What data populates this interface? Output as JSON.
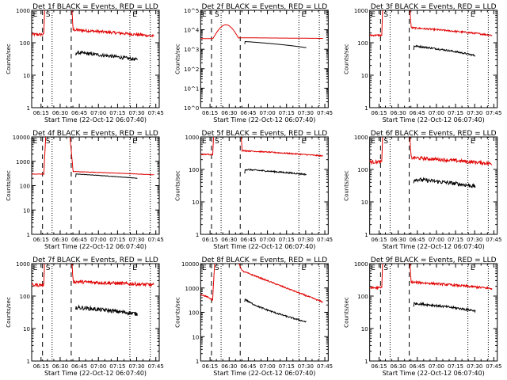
{
  "colors": {
    "events": "#000000",
    "lld": "#e00000",
    "axis": "#000000"
  },
  "chart_data": {
    "type": "line",
    "common": {
      "xlabel": "Start Time (22-Oct-12 06:07:40)",
      "ylabel": "Counts/sec",
      "x_tick_labels": [
        "06:15",
        "06:30",
        "06:45",
        "07:00",
        "07:15",
        "07:30",
        "07:45"
      ],
      "x_ticks_min": [
        7.33,
        22.33,
        37.33,
        52.33,
        67.33,
        82.33,
        97.33
      ],
      "xlim_min": [
        0,
        100
      ],
      "yscale": "log",
      "dashed_vlines_min": [
        8.5,
        31
      ],
      "dotted_vlines_min": [
        16,
        77,
        93
      ],
      "markers": [
        {
          "label": "E",
          "x_min": 1
        },
        {
          "label": "S",
          "x_min": 11
        },
        {
          "label": "E",
          "x_min": 79
        }
      ]
    },
    "panels": [
      {
        "title": "Det 1f BLACK = Events, RED = LLD",
        "ylim": [
          1,
          1000
        ],
        "y_tick_labels": [
          "1",
          "10",
          "100",
          "1000"
        ],
        "lld": {
          "pre": 180,
          "post_start": 250,
          "post_end": 160,
          "noise": 0.1
        },
        "events": {
          "start": 50,
          "end": 30,
          "noise": 0.12
        }
      },
      {
        "title": "Det 2f BLACK = Events, RED = LLD",
        "ylim": [
          1,
          100000
        ],
        "y_tick_labels": [
          "10^0",
          "10^1",
          "10^2",
          "10^3",
          "10^4",
          "10^5"
        ],
        "lld": {
          "pre": 3500,
          "post_start": 3900,
          "post_end": 3600,
          "noise": 0.0,
          "hump": 18000
        },
        "events": {
          "start": 2500,
          "end": 1200,
          "noise": 0.0
        }
      },
      {
        "title": "Det 3f BLACK = Events, RED = LLD",
        "ylim": [
          1,
          1000
        ],
        "y_tick_labels": [
          "1",
          "10",
          "100",
          "1000"
        ],
        "lld": {
          "pre": 170,
          "post_start": 290,
          "post_end": 170,
          "noise": 0.06
        },
        "events": {
          "start": 80,
          "end": 40,
          "noise": 0.06
        }
      },
      {
        "title": "Det 4f BLACK = Events, RED = LLD",
        "ylim": [
          1,
          10000
        ],
        "y_tick_labels": [
          "1",
          "10",
          "100",
          "1000",
          "10000"
        ],
        "lld": {
          "pre": 300,
          "post_start": 380,
          "post_end": 280,
          "noise": 0.02
        },
        "events": {
          "start": 300,
          "end": 200,
          "noise": 0.02
        }
      },
      {
        "title": "Det 5f BLACK = Events, RED = LLD",
        "ylim": [
          1,
          1000
        ],
        "y_tick_labels": [
          "1",
          "10",
          "100",
          "1000"
        ],
        "lld": {
          "pre": 290,
          "post_start": 380,
          "post_end": 260,
          "noise": 0.04
        },
        "events": {
          "start": 100,
          "end": 70,
          "noise": 0.05
        }
      },
      {
        "title": "Det 6f BLACK = Events, RED = LLD",
        "ylim": [
          1,
          1000
        ],
        "y_tick_labels": [
          "1",
          "10",
          "100",
          "1000"
        ],
        "lld": {
          "pre": 170,
          "post_start": 230,
          "post_end": 150,
          "noise": 0.12
        },
        "events": {
          "start": 50,
          "end": 30,
          "noise": 0.14
        }
      },
      {
        "title": "Det 7f BLACK = Events, RED = LLD",
        "ylim": [
          1,
          1000
        ],
        "y_tick_labels": [
          "1",
          "10",
          "100",
          "1000"
        ],
        "lld": {
          "pre": 220,
          "post_start": 280,
          "post_end": 220,
          "noise": 0.12
        },
        "events": {
          "start": 45,
          "end": 28,
          "noise": 0.14
        }
      },
      {
        "title": "Det 8f BLACK = Events, RED = LLD",
        "ylim": [
          1,
          10000
        ],
        "y_tick_labels": [
          "1",
          "10",
          "100",
          "1000",
          "10000"
        ],
        "lld": {
          "pre": 550,
          "pre_end": 320,
          "post_start": 5000,
          "post_end": 260,
          "noise": 0.06,
          "decay": true
        },
        "events": {
          "start": 380,
          "end": 40,
          "noise": 0.07,
          "decay": true
        }
      },
      {
        "title": "Det 9f BLACK = Events, RED = LLD",
        "ylim": [
          1,
          1000
        ],
        "y_tick_labels": [
          "1",
          "10",
          "100",
          "1000"
        ],
        "lld": {
          "pre": 180,
          "post_start": 270,
          "post_end": 170,
          "noise": 0.08
        },
        "events": {
          "start": 60,
          "end": 35,
          "noise": 0.08
        }
      }
    ]
  }
}
